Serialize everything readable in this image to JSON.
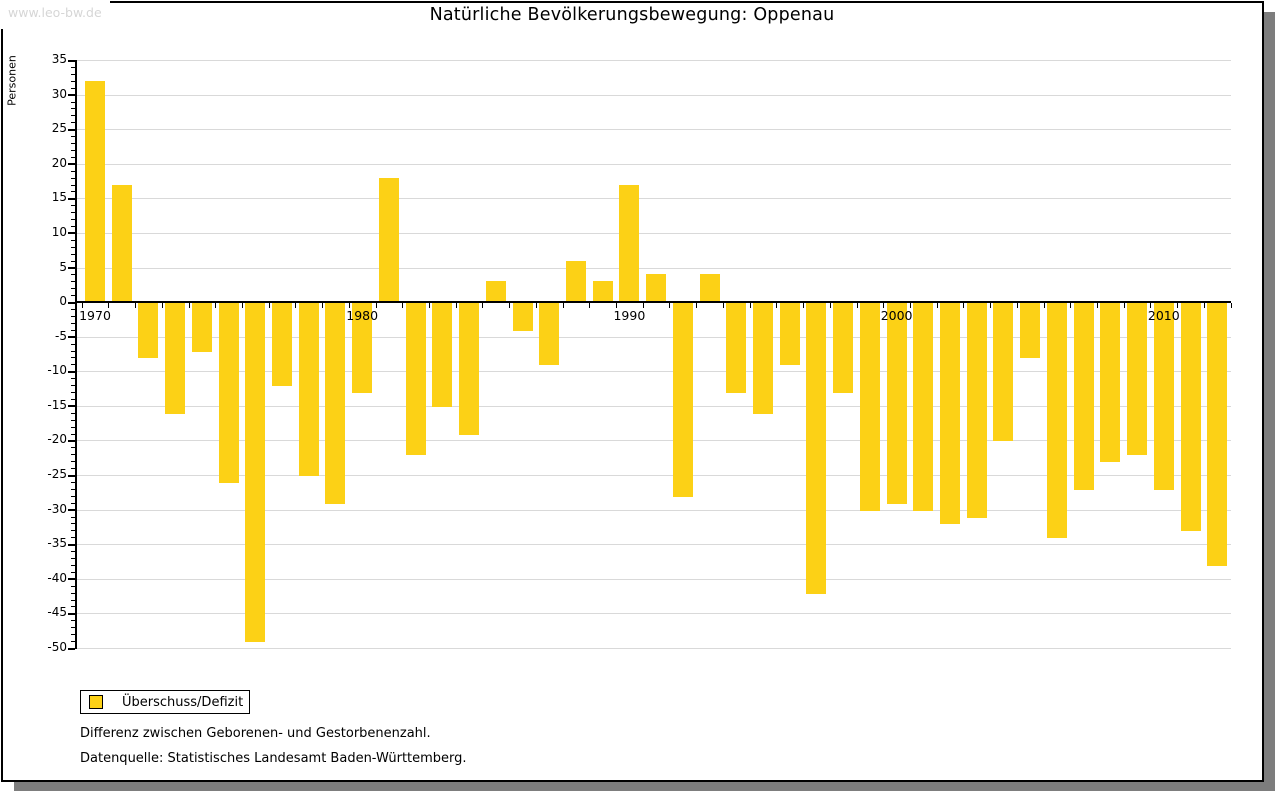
{
  "watermark": "www.leo-bw.de",
  "title": "Natürliche Bevölkerungsbewegung: Oppenau",
  "legend": {
    "label": "Überschuss/Defizit"
  },
  "footnotes": {
    "line1": "Differenz zwischen Geborenen- und Gestorbenenzahl.",
    "line2": "Datenquelle: Statistisches Landesamt Baden-Württemberg."
  },
  "colors": {
    "bar": "#FCD116",
    "gridline": "#d9d9d9",
    "axis": "#000000",
    "shadow": "#7d7d7d",
    "watermark_text": "#d6d6d6"
  },
  "chart_data": {
    "type": "bar",
    "title": "Natürliche Bevölkerungsbewegung: Oppenau",
    "ylabel": "Personen",
    "xlabel": "",
    "ylim": [
      -50,
      35
    ],
    "ytick_step": 5,
    "grid": "horizontal",
    "legend_position": "bottom-left",
    "series_name": "Überschuss/Defizit",
    "x": [
      1970,
      1971,
      1972,
      1973,
      1974,
      1975,
      1976,
      1977,
      1978,
      1979,
      1980,
      1981,
      1982,
      1983,
      1984,
      1985,
      1986,
      1987,
      1988,
      1989,
      1990,
      1991,
      1992,
      1993,
      1994,
      1995,
      1996,
      1997,
      1998,
      1999,
      2000,
      2001,
      2002,
      2003,
      2004,
      2005,
      2006,
      2007,
      2008,
      2009,
      2010,
      2011,
      2012
    ],
    "values": [
      32,
      17,
      -8,
      -16,
      -7,
      -26,
      -49,
      -12,
      -25,
      -29,
      -13,
      18,
      -22,
      -15,
      -19,
      3,
      -4,
      -9,
      6,
      3,
      17,
      4,
      -28,
      4,
      -13,
      -16,
      -9,
      -42,
      -13,
      -30,
      -29,
      -30,
      -32,
      -31,
      -20,
      -8,
      -34,
      -27,
      -23,
      -22,
      -27,
      -33,
      -38
    ],
    "xtick_labels": [
      "1970",
      "1980",
      "1990",
      "2000",
      "2010"
    ]
  }
}
